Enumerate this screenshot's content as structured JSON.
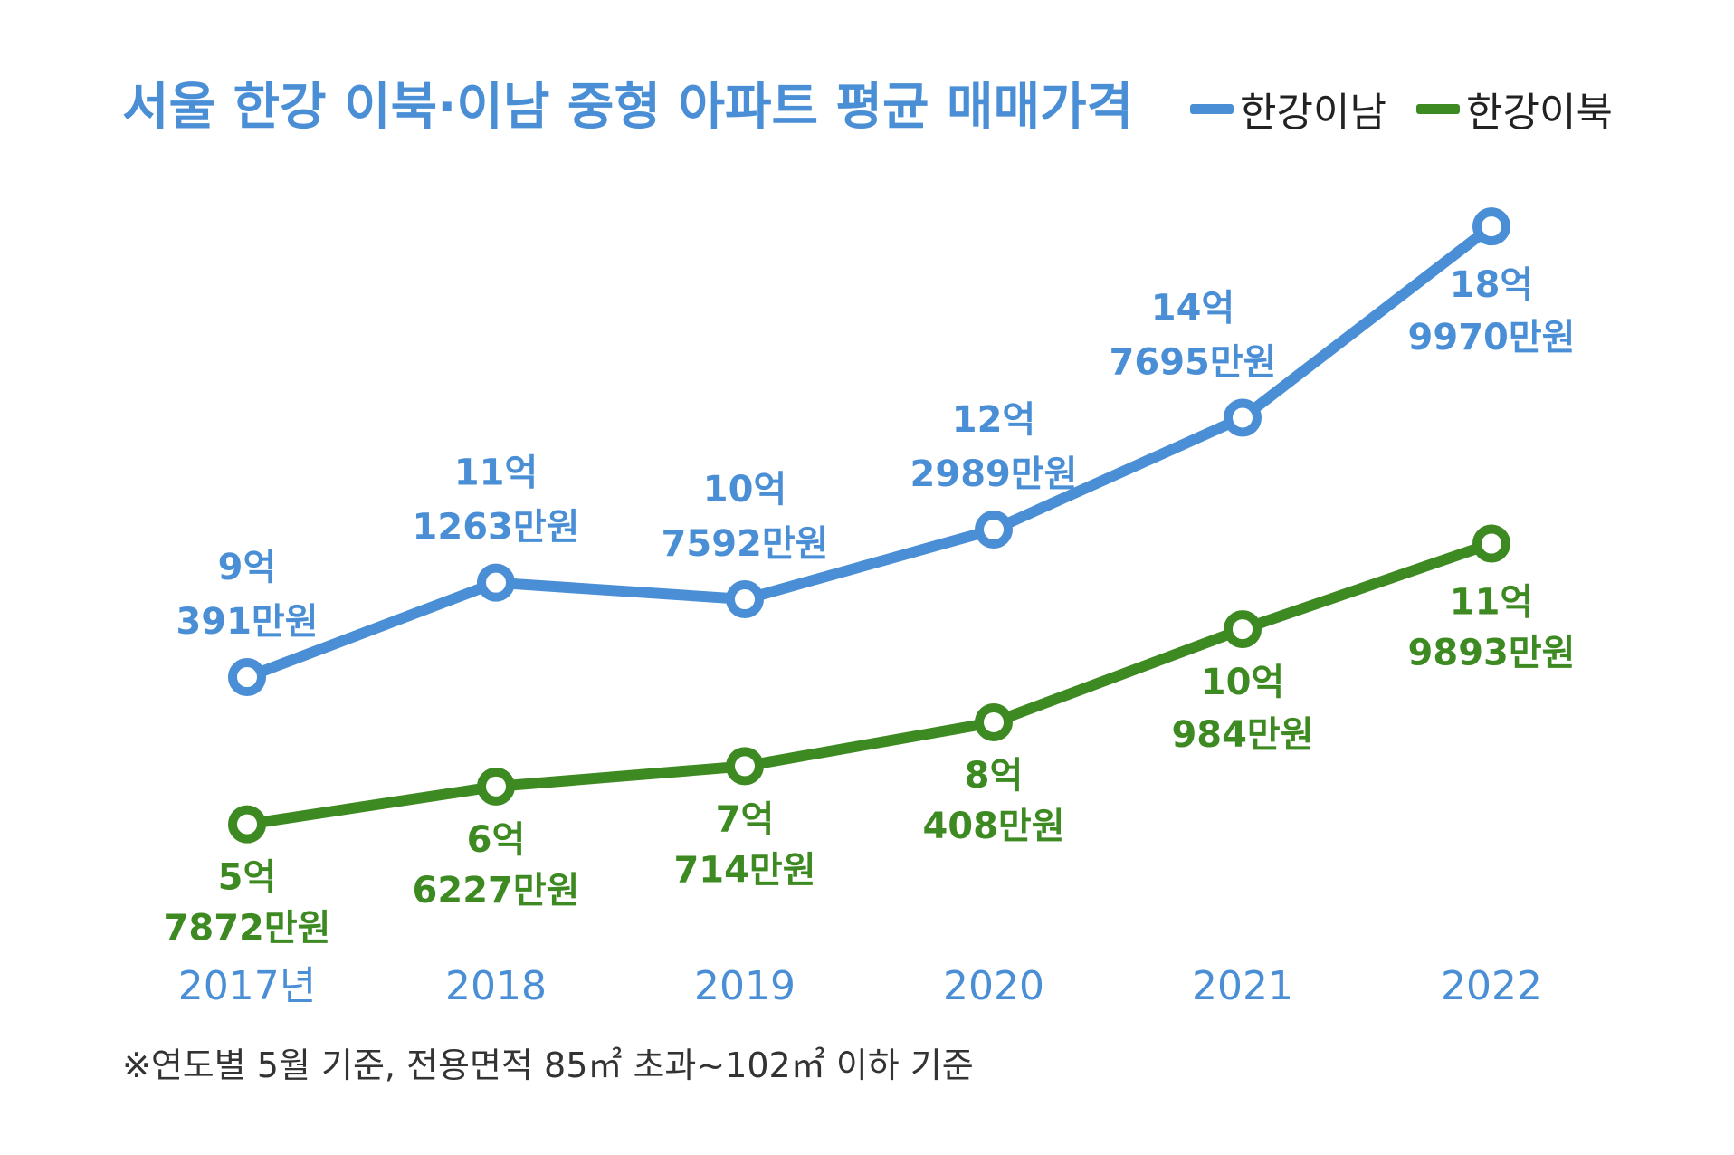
{
  "chart_data": {
    "type": "line",
    "title": "서울 한강 이북·이남 중형 아파트 평균 매매가격",
    "unit": "만원",
    "categories": [
      "2017년",
      "2018",
      "2019",
      "2020",
      "2021",
      "2022"
    ],
    "ylim": [
      40000,
      200000
    ],
    "legend_position": "top-right",
    "grid": false,
    "series": [
      {
        "name": "한강이남",
        "color": "#4a8fd6",
        "values": [
          90391,
          111263,
          107592,
          122989,
          147695,
          189970
        ],
        "labels": [
          [
            "9억",
            "391만원"
          ],
          [
            "11억",
            "1263만원"
          ],
          [
            "10억",
            "7592만원"
          ],
          [
            "12억",
            "2989만원"
          ],
          [
            "14억",
            "7695만원"
          ],
          [
            "18억",
            "9970만원"
          ]
        ]
      },
      {
        "name": "한강이북",
        "color": "#3e8a22",
        "values": [
          57872,
          66227,
          70714,
          80408,
          100984,
          119893
        ],
        "labels": [
          [
            "5억",
            "7872만원"
          ],
          [
            "6억",
            "6227만원"
          ],
          [
            "7억",
            "714만원"
          ],
          [
            "8억",
            "408만원"
          ],
          [
            "10억",
            "984만원"
          ],
          [
            "11억",
            "9893만원"
          ]
        ]
      }
    ],
    "footnote": "※연도별 5월 기준, 전용면적 85㎡ 초과~102㎡ 이하 기준"
  }
}
